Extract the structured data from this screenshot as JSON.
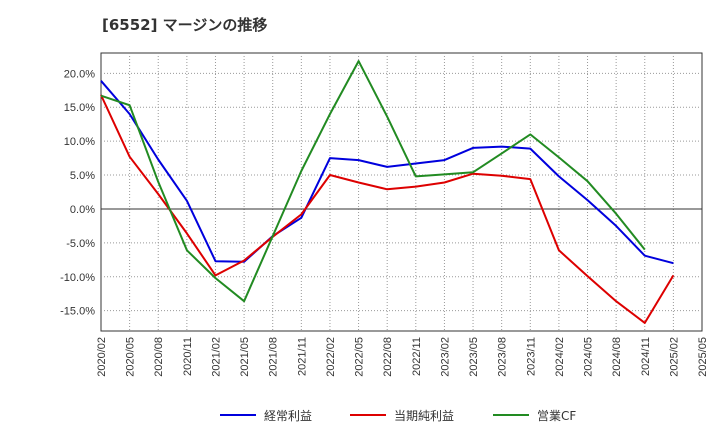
{
  "title": "[6552]  マージンの推移",
  "chart_data": {
    "type": "line",
    "title": "[6552]  マージンの推移",
    "x": [
      "2020/02",
      "2020/05",
      "2020/08",
      "2020/11",
      "2021/02",
      "2021/05",
      "2021/08",
      "2021/11",
      "2022/02",
      "2022/05",
      "2022/08",
      "2022/11",
      "2023/02",
      "2023/05",
      "2023/08",
      "2023/11",
      "2024/02",
      "2024/05",
      "2024/08",
      "2024/11",
      "2025/02",
      "2025/05"
    ],
    "y_ticks": [
      "20.0%",
      "15.0%",
      "10.0%",
      "5.0%",
      "0.0%",
      "-5.0%",
      "-10.0%",
      "-15.0%"
    ],
    "ylim": [
      -18,
      23
    ],
    "y_unit": "%",
    "grid": true,
    "legend_position": "bottom",
    "series": [
      {
        "name": "経常利益",
        "color": "#0000dd",
        "values": [
          18.9,
          14.0,
          7.3,
          1.2,
          -7.7,
          -7.8,
          -4.0,
          -1.3,
          7.5,
          7.2,
          6.2,
          6.7,
          7.2,
          9.0,
          9.2,
          8.9,
          4.8,
          1.3,
          -2.5,
          -6.9,
          -8.0,
          null
        ]
      },
      {
        "name": "当期純利益",
        "color": "#dd0000",
        "values": [
          16.8,
          7.7,
          2.2,
          -3.6,
          -9.8,
          -7.6,
          -4.1,
          -0.8,
          5.0,
          3.9,
          2.9,
          3.3,
          3.9,
          5.2,
          4.9,
          4.4,
          -6.1,
          -9.9,
          -13.6,
          -16.8,
          -9.8,
          null
        ]
      },
      {
        "name": "営業CF",
        "color": "#228b22",
        "values": [
          16.7,
          15.3,
          4.0,
          -6.1,
          -10.2,
          -13.6,
          -4.0,
          5.6,
          14.0,
          21.8,
          13.6,
          4.8,
          5.1,
          5.4,
          8.2,
          11.0,
          7.6,
          4.1,
          -0.7,
          -6.0,
          null,
          null
        ]
      }
    ]
  }
}
